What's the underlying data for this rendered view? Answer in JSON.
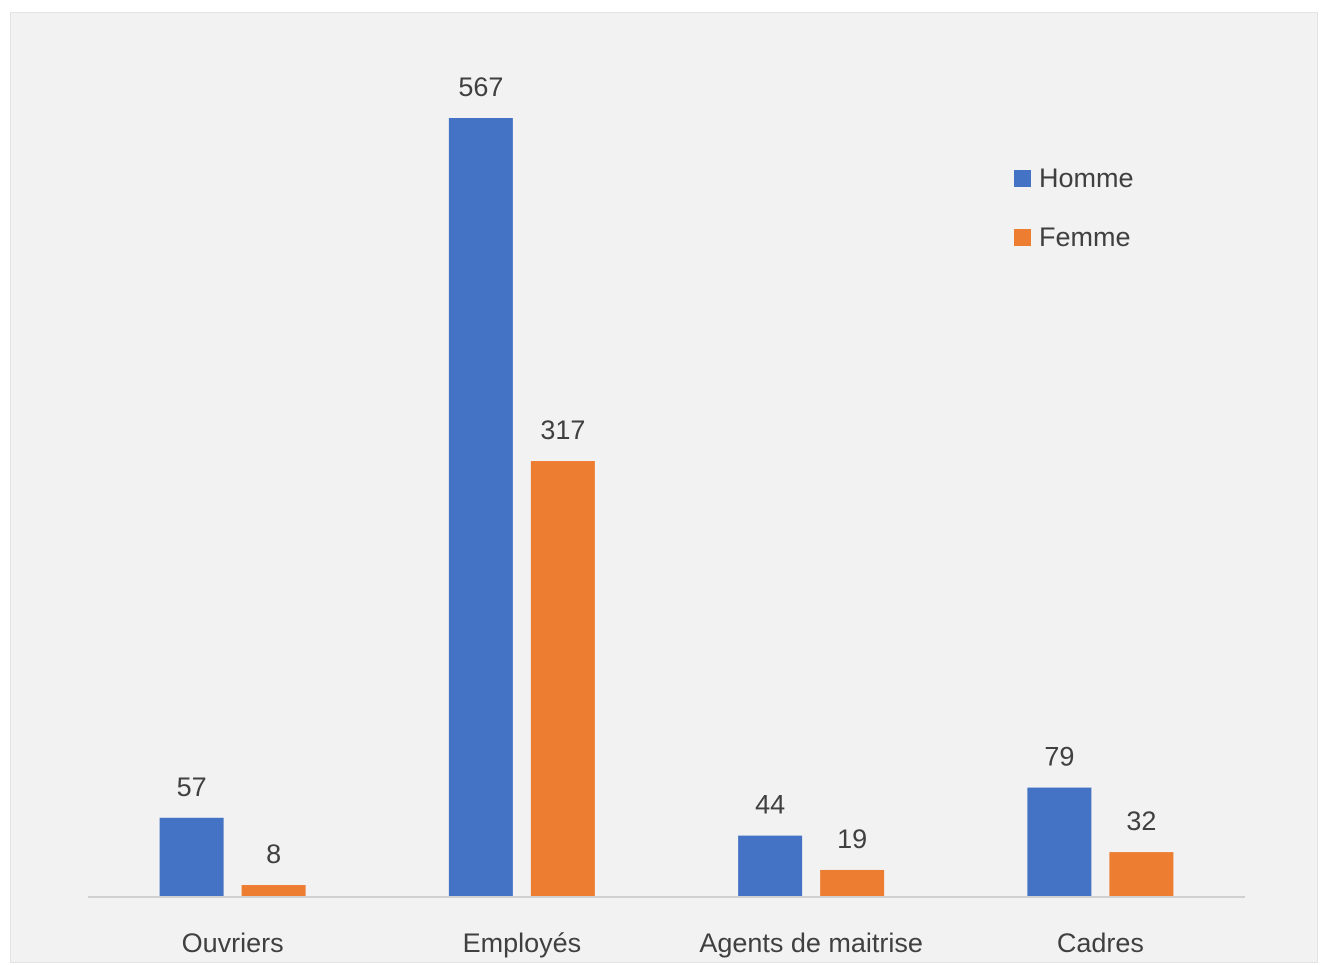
{
  "chart_data": {
    "type": "bar",
    "categories": [
      "Ouvriers",
      "Employés",
      "Agents de maitrise",
      "Cadres"
    ],
    "series": [
      {
        "name": "Homme",
        "values": [
          57,
          567,
          44,
          79
        ],
        "color": "#4472c4"
      },
      {
        "name": "Femme",
        "values": [
          8,
          317,
          19,
          32
        ],
        "color": "#ed7d31"
      }
    ],
    "ylim": [
      0,
      567
    ],
    "grid": false,
    "legend_position": "top-right",
    "data_labels": true
  }
}
